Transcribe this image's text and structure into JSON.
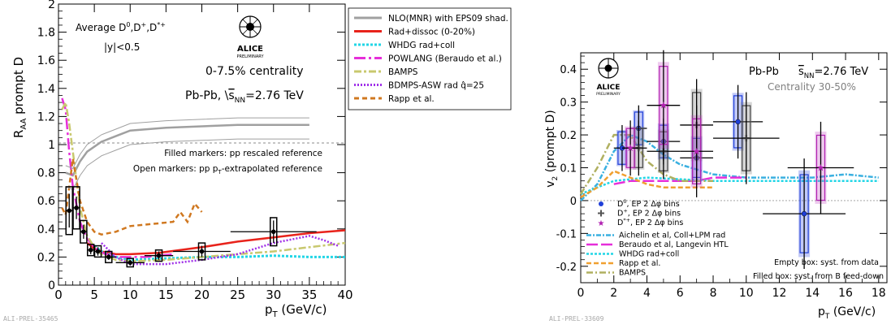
{
  "left_panel": {
    "ylabel": "R",
    "ylabel_sub": "AA",
    "ylabel_rest": " prompt D",
    "xlabel": "p",
    "xlabel_sub": "T",
    "xlabel_rest": " (GeV/c)",
    "yticks": [
      "0",
      "0.2",
      "0.4",
      "0.6",
      "0.8",
      "1",
      "1.2",
      "1.4",
      "1.6",
      "1.8",
      "2"
    ],
    "xticks": [
      "0",
      "5",
      "10",
      "15",
      "20",
      "25",
      "30",
      "35",
      "40"
    ],
    "title_line1": "Average D",
    "title_line2": "|y|<0.5",
    "centrality": "0-7.5% centrality",
    "system": "Pb-Pb, ",
    "energy": "s",
    "energy_sub": "NN",
    "energy_val": "=2.76 TeV",
    "note1": "Filled markers: pp rescaled reference",
    "note2": "Open markers: pp p",
    "note2_sub": "T",
    "note2_rest": "-extrapolated reference",
    "prelim_tag": "ALI-PREL-35465",
    "logo_text": "ALICE",
    "logo_sub": "PRELIMINARY"
  },
  "left_legend": [
    {
      "label": "NLO(MNR) with EPS09 shad.",
      "color": "#a0a0a0",
      "dash": ""
    },
    {
      "label": "Rad+dissoc (0-20%)",
      "color": "#e8231b",
      "dash": ""
    },
    {
      "label": "WHDG rad+coll",
      "color": "#22d6e6",
      "dash": "3,2"
    },
    {
      "label": "POWLANG (Beraudo et al.)",
      "color": "#e62fd9",
      "dash": "14,4,3,4"
    },
    {
      "label": "BAMPS",
      "color": "#c8c86e",
      "dash": "9,3,3,3"
    },
    {
      "label": "BDMPS-ASW rad q̂=25",
      "color": "#a030e8",
      "dash": "2,2"
    },
    {
      "label": "Rapp et al.",
      "color": "#d07820",
      "dash": "6,4"
    }
  ],
  "right_panel": {
    "ylabel": "v",
    "ylabel_sub": "2",
    "ylabel_rest": " (prompt D)",
    "xlabel": "p",
    "xlabel_sub": "T",
    "xlabel_rest": " (GeV/c)",
    "yticks": [
      "-0.2",
      "-0.1",
      "0",
      "0.1",
      "0.2",
      "0.3",
      "0.4"
    ],
    "xticks": [
      "0",
      "2",
      "4",
      "6",
      "8",
      "10",
      "12",
      "14",
      "16",
      "18"
    ],
    "system": "Pb-Pb",
    "energy": "s",
    "energy_sub": "NN",
    "energy_val": "=2.76 TeV",
    "centrality": "Centrality 30-50%",
    "note1": "Empty box: syst. from data",
    "note2": "Filled box: syst. from B feed-down",
    "prelim_tag": "ALI-PREL-33609",
    "logo_text": "ALICE",
    "logo_sub": "PRELIMINARY"
  },
  "right_legend": [
    {
      "label": "D",
      "sup": "0",
      "rest": ", EP 2 Δφ bins",
      "color": "#1f3fd8",
      "marker": "circle"
    },
    {
      "label": "D",
      "sup": "+",
      "rest": ", EP 2 Δφ bins",
      "color": "#555555",
      "marker": "cross"
    },
    {
      "label": "D",
      "sup": "*+",
      "rest": ", EP 2 Δφ bins",
      "color": "#b020b0",
      "marker": "star"
    },
    {
      "label": "Aichelin et al, Coll+LPM rad",
      "color": "#3ab0e0",
      "dash": "6,2,2,2"
    },
    {
      "label": "Beraudo et al, Langevin HTL",
      "color": "#e62fd9",
      "dash": "14,4"
    },
    {
      "label": "WHDG rad+coll",
      "color": "#22d6e6",
      "dash": "3,2"
    },
    {
      "label": "Rapp et al.",
      "color": "#f0a030",
      "dash": "6,3"
    },
    {
      "label": "BAMPS",
      "color": "#b0b060",
      "dash": "8,3,2,3"
    }
  ],
  "chart_data": [
    {
      "type": "scatter",
      "title": "",
      "xlabel": "pT (GeV/c)",
      "ylabel": "RAA prompt D",
      "xlim": [
        0,
        40
      ],
      "ylim": [
        0,
        2
      ],
      "legend_position": "top-right",
      "data_points": [
        {
          "x": 1.5,
          "y": 0.53,
          "xerr": 0.5,
          "yerr": 0.12,
          "sys": 0.17
        },
        {
          "x": 2.5,
          "y": 0.55,
          "xerr": 0.5,
          "yerr": 0.08,
          "sys": 0.15
        },
        {
          "x": 3.5,
          "y": 0.38,
          "xerr": 0.5,
          "yerr": 0.05,
          "sys": 0.08
        },
        {
          "x": 4.5,
          "y": 0.25,
          "xerr": 0.5,
          "yerr": 0.03,
          "sys": 0.04
        },
        {
          "x": 5.5,
          "y": 0.24,
          "xerr": 0.5,
          "yerr": 0.03,
          "sys": 0.04
        },
        {
          "x": 7,
          "y": 0.2,
          "xerr": 1,
          "yerr": 0.02,
          "sys": 0.04
        },
        {
          "x": 10,
          "y": 0.16,
          "xerr": 2,
          "yerr": 0.02,
          "sys": 0.03
        },
        {
          "x": 14,
          "y": 0.21,
          "xerr": 2,
          "yerr": 0.03,
          "sys": 0.04
        },
        {
          "x": 20,
          "y": 0.24,
          "xerr": 4,
          "yerr": 0.04,
          "sys": 0.06
        },
        {
          "x": 30,
          "y": 0.38,
          "xerr": 6,
          "yerr": 0.08,
          "sys": 0.1
        }
      ],
      "series": [
        {
          "name": "NLO(MNR) with EPS09 shad.",
          "x": [
            1,
            2,
            3,
            4,
            6,
            8,
            10,
            15,
            20,
            25,
            30,
            35
          ],
          "y": [
            0.8,
            0.78,
            0.88,
            0.95,
            1.02,
            1.06,
            1.1,
            1.12,
            1.13,
            1.14,
            1.14,
            1.14
          ]
        },
        {
          "name": "Rad+dissoc (0-20%)",
          "x": [
            4,
            5,
            6,
            8,
            10,
            14,
            20,
            25,
            30,
            35,
            40
          ],
          "y": [
            0.3,
            0.26,
            0.24,
            0.22,
            0.22,
            0.23,
            0.27,
            0.31,
            0.34,
            0.37,
            0.39
          ]
        },
        {
          "name": "WHDG rad+coll",
          "x": [
            5,
            6,
            8,
            10,
            15,
            20,
            25,
            30,
            35,
            40
          ],
          "y": [
            0.28,
            0.24,
            0.2,
            0.18,
            0.19,
            0.2,
            0.2,
            0.21,
            0.2,
            0.2
          ]
        },
        {
          "name": "POWLANG (Beraudo et al.)",
          "x": [
            0.5,
            1,
            1.5,
            2,
            3,
            4,
            5,
            6,
            8,
            10,
            12,
            14,
            16
          ],
          "y": [
            1.33,
            1.25,
            0.95,
            0.7,
            0.45,
            0.33,
            0.27,
            0.23,
            0.2,
            0.2,
            0.2,
            0.21,
            0.22
          ]
        },
        {
          "name": "BAMPS",
          "x": [
            0.5,
            1,
            1.5,
            2,
            3,
            4,
            5,
            6,
            8,
            10,
            15,
            20,
            25,
            30,
            35,
            40
          ],
          "y": [
            1.25,
            1.3,
            1.15,
            0.95,
            0.55,
            0.35,
            0.27,
            0.22,
            0.18,
            0.17,
            0.18,
            0.2,
            0.22,
            0.24,
            0.27,
            0.3
          ]
        },
        {
          "name": "BDMPS-ASW rad q=25",
          "x": [
            6,
            8,
            10,
            15,
            20,
            25,
            30,
            35,
            37,
            39
          ],
          "y": [
            0.3,
            0.2,
            0.15,
            0.15,
            0.18,
            0.22,
            0.3,
            0.35,
            0.32,
            0.28
          ]
        },
        {
          "name": "Rapp et al.",
          "x": [
            0.5,
            1,
            2,
            3,
            4,
            5,
            6,
            8,
            10,
            12,
            14,
            16,
            17,
            18,
            19,
            20
          ],
          "y": [
            0.55,
            0.5,
            0.9,
            0.6,
            0.45,
            0.38,
            0.36,
            0.38,
            0.42,
            0.43,
            0.44,
            0.45,
            0.52,
            0.45,
            0.58,
            0.52
          ]
        }
      ]
    },
    {
      "type": "scatter",
      "title": "",
      "xlabel": "pT (GeV/c)",
      "ylabel": "v2 (prompt D)",
      "xlim": [
        0,
        18.5
      ],
      "ylim": [
        -0.25,
        0.45
      ],
      "legend_position": "bottom-left",
      "series": [
        {
          "name": "D0, EP 2 Δφ bins",
          "points": [
            {
              "x": 2.5,
              "y": 0.16,
              "yerr": 0.05,
              "xerr": 0.5
            },
            {
              "x": 3.5,
              "y": 0.22,
              "yerr": 0.05,
              "xerr": 0.5
            },
            {
              "x": 5,
              "y": 0.18,
              "yerr": 0.05,
              "xerr": 1
            },
            {
              "x": 7,
              "y": 0.13,
              "yerr": 0.06,
              "xerr": 1
            },
            {
              "x": 9.5,
              "y": 0.24,
              "yerr": 0.08,
              "xerr": 1.5
            },
            {
              "x": 13.5,
              "y": -0.04,
              "yerr": 0.12,
              "xerr": 2.5
            }
          ]
        },
        {
          "name": "D+, EP 2 Δφ bins",
          "points": [
            {
              "x": 3.5,
              "y": 0.16,
              "yerr": 0.06,
              "xerr": 0.5
            },
            {
              "x": 5,
              "y": 0.15,
              "yerr": 0.06,
              "xerr": 1
            },
            {
              "x": 7,
              "y": 0.23,
              "yerr": 0.1,
              "xerr": 1
            },
            {
              "x": 10,
              "y": 0.19,
              "yerr": 0.1,
              "xerr": 2
            }
          ]
        },
        {
          "name": "D*+, EP 2 Δφ bins",
          "points": [
            {
              "x": 3,
              "y": 0.16,
              "yerr": 0.06,
              "xerr": 0.5
            },
            {
              "x": 5,
              "y": 0.29,
              "yerr": 0.12,
              "xerr": 1
            },
            {
              "x": 7,
              "y": 0.15,
              "yerr": 0.1,
              "xerr": 1
            },
            {
              "x": 14.5,
              "y": 0.1,
              "yerr": 0.1,
              "xerr": 2
            }
          ]
        },
        {
          "name": "Aichelin et al, Coll+LPM rad",
          "x": [
            0,
            1,
            2,
            3,
            4,
            5,
            6,
            8,
            10,
            12,
            14,
            16,
            18
          ],
          "y": [
            0,
            0.05,
            0.15,
            0.2,
            0.18,
            0.14,
            0.11,
            0.08,
            0.07,
            0.07,
            0.07,
            0.08,
            0.07
          ]
        },
        {
          "name": "Beraudo et al, Langevin HTL",
          "x": [
            2,
            3,
            4,
            5,
            6,
            7,
            8,
            9,
            10
          ],
          "y": [
            0.05,
            0.06,
            0.06,
            0.06,
            0.06,
            0.06,
            0.07,
            0.07,
            0.07
          ]
        },
        {
          "name": "WHDG rad+coll",
          "x": [
            0,
            2,
            4,
            6,
            8,
            10,
            12,
            14,
            16,
            18
          ],
          "y": [
            0.02,
            0.06,
            0.07,
            0.065,
            0.06,
            0.06,
            0.06,
            0.06,
            0.06,
            0.06
          ]
        },
        {
          "name": "Rapp et al.",
          "x": [
            0,
            1,
            2,
            3,
            4,
            5,
            6,
            7,
            8
          ],
          "y": [
            0.01,
            0.04,
            0.09,
            0.07,
            0.05,
            0.04,
            0.04,
            0.04,
            0.04
          ]
        },
        {
          "name": "BAMPS",
          "x": [
            0,
            1,
            2,
            3,
            4,
            5,
            6,
            7,
            8
          ],
          "y": [
            0.02,
            0.1,
            0.2,
            0.2,
            0.12,
            0.08,
            0.06,
            0.06,
            0.06
          ]
        }
      ]
    }
  ]
}
